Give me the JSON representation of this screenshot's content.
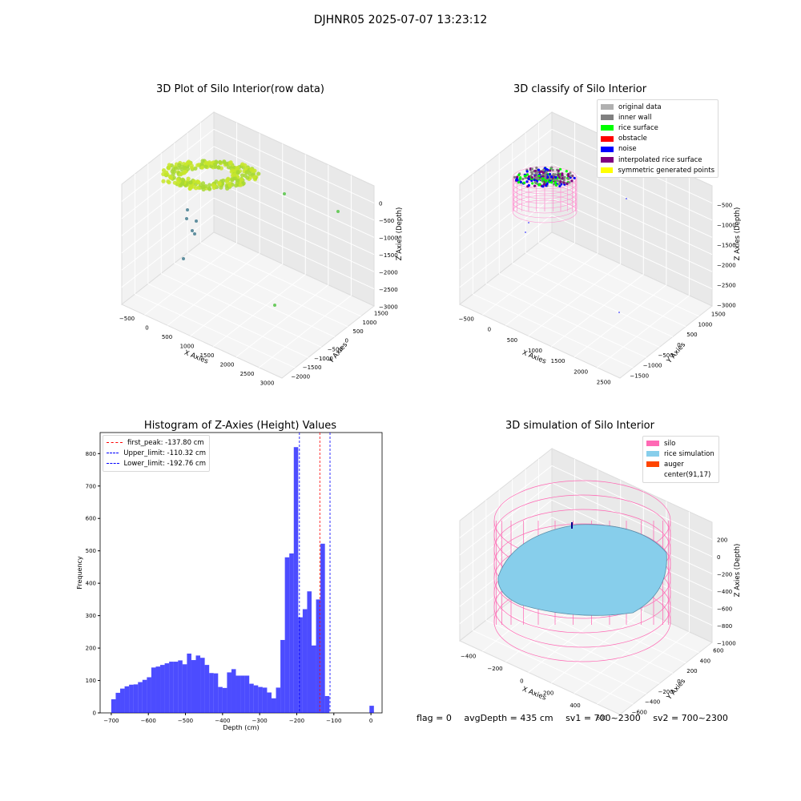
{
  "suptitle": "DJHNR05 2025-07-07 13:23:12",
  "panels": {
    "raw": {
      "title": "3D Plot of Silo Interior(row data)",
      "xlabel": "X Axies",
      "ylabel": "Y Axies",
      "zlabel": "Z Axies (Depth)",
      "xticks": [
        "−500",
        "0",
        "500",
        "1000",
        "1500",
        "2000",
        "2500",
        "3000"
      ],
      "yticks": [
        "1500",
        "1000",
        "500",
        "0",
        "−500",
        "−1000",
        "−1500",
        "−2000"
      ],
      "zticks": [
        "0",
        "−500",
        "−1000",
        "−1500",
        "−2000",
        "−2500",
        "−3000"
      ]
    },
    "classify": {
      "title": "3D classify of Silo Interior",
      "xlabel": "X Axies",
      "ylabel": "Y Axies",
      "zlabel": "Z Axies (Depth)",
      "xticks": [
        "−500",
        "0",
        "500",
        "1000",
        "1500",
        "2000",
        "2500"
      ],
      "yticks": [
        "1500",
        "1000",
        "500",
        "0",
        "−500",
        "−1000",
        "−1500"
      ],
      "zticks": [
        "−500",
        "−1000",
        "−1500",
        "−2000",
        "−2500",
        "−3000"
      ],
      "legend": [
        {
          "label": "original data",
          "color": "#b0b0b0"
        },
        {
          "label": "inner wall",
          "color": "#808080"
        },
        {
          "label": "rice surface",
          "color": "#00ff00"
        },
        {
          "label": "obstacle",
          "color": "#ff0000"
        },
        {
          "label": "noise",
          "color": "#0000ff"
        },
        {
          "label": "interpolated rice surface",
          "color": "#800080"
        },
        {
          "label": "symmetric generated points",
          "color": "#ffff00"
        }
      ]
    },
    "histogram": {
      "title": "Histogram of Z-Axies (Height) Values",
      "legend": [
        {
          "label": "first_peak: -137.80 cm",
          "color": "#ff0000"
        },
        {
          "label": "Upper_limit: -110.32 cm",
          "color": "#0000ff"
        },
        {
          "label": "Lower_limit: -192.76 cm",
          "color": "#0000ff"
        }
      ]
    },
    "simulation": {
      "title": "3D simulation of Silo Interior",
      "xlabel": "X Axies",
      "ylabel": "Y Axies",
      "zlabel": "Z Axies (Depth)",
      "xticks": [
        "−400",
        "−200",
        "0",
        "200",
        "400",
        "600"
      ],
      "yticks": [
        "600",
        "400",
        "200",
        "0",
        "−200",
        "−400",
        "−600"
      ],
      "zticks": [
        "200",
        "0",
        "−200",
        "−400",
        "−600",
        "−800",
        "−1000"
      ],
      "legend": [
        {
          "label": "silo",
          "color": "#ff69b4"
        },
        {
          "label": "rice simulation",
          "color": "#87ceeb"
        },
        {
          "label": "auger",
          "color": "#ff4500"
        },
        {
          "label": "center(91,17)",
          "color": ""
        }
      ]
    }
  },
  "footer": {
    "flag": "flag = 0",
    "avg": "avgDepth = 435 cm",
    "sv1": "sv1 = 700~2300",
    "sv2": "sv2 = 700~2300"
  },
  "chart_data": {
    "type": "bar",
    "title": "Histogram of Z-Axies (Height) Values",
    "xlabel": "Depth (cm)",
    "ylabel": "Frequency",
    "xlim": [
      -730,
      30
    ],
    "ylim": [
      0,
      865
    ],
    "xticks": [
      -700,
      -600,
      -500,
      -400,
      -300,
      -200,
      -100,
      0
    ],
    "yticks": [
      0,
      100,
      200,
      300,
      400,
      500,
      600,
      700,
      800
    ],
    "bar_color": "#0000ff",
    "bar_width": 12,
    "bins_left": [
      -700,
      -688,
      -676,
      -664,
      -652,
      -640,
      -628,
      -616,
      -604,
      -592,
      -580,
      -568,
      -556,
      -544,
      -532,
      -520,
      -508,
      -496,
      -484,
      -472,
      -460,
      -448,
      -436,
      -424,
      -412,
      -400,
      -388,
      -376,
      -364,
      -352,
      -340,
      -328,
      -316,
      -304,
      -292,
      -280,
      -268,
      -256,
      -244,
      -232,
      -220,
      -208,
      -196,
      -184,
      -172,
      -160,
      -148,
      -136,
      -124,
      -112,
      -100,
      -88,
      -76,
      -64,
      -52,
      -40,
      -28,
      -16,
      -4
    ],
    "values": [
      42,
      62,
      75,
      82,
      87,
      88,
      95,
      102,
      110,
      140,
      143,
      148,
      153,
      158,
      158,
      162,
      150,
      183,
      163,
      177,
      170,
      148,
      123,
      122,
      80,
      77,
      125,
      135,
      115,
      115,
      115,
      90,
      85,
      80,
      78,
      63,
      45,
      78,
      225,
      480,
      492,
      820,
      295,
      320,
      375,
      208,
      350,
      522,
      52,
      0,
      0,
      0,
      0,
      0,
      0,
      0,
      0,
      0,
      22
    ],
    "vlines": [
      {
        "label": "first_peak",
        "x": -137.8,
        "color": "#ff0000"
      },
      {
        "label": "Upper_limit",
        "x": -110.32,
        "color": "#0000ff"
      },
      {
        "label": "Lower_limit",
        "x": -192.76,
        "color": "#0000ff"
      }
    ]
  }
}
